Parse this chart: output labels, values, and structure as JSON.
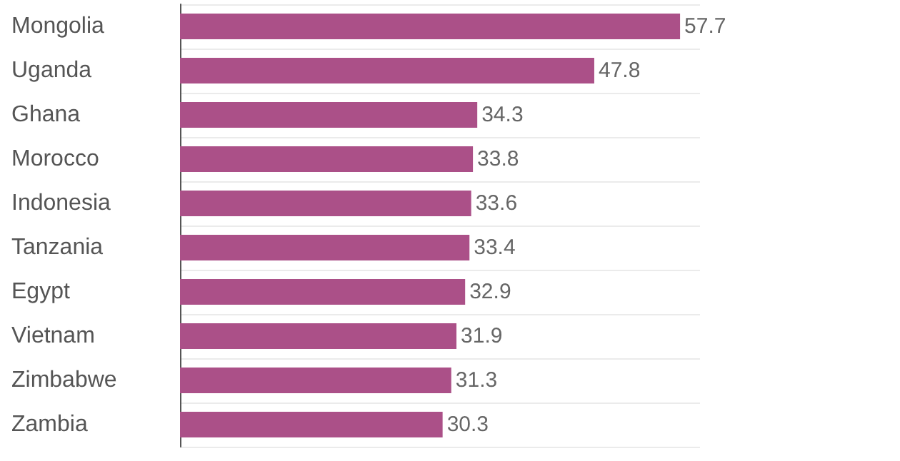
{
  "chart_data": {
    "type": "bar",
    "orientation": "horizontal",
    "categories": [
      "Mongolia",
      "Uganda",
      "Ghana",
      "Morocco",
      "Indonesia",
      "Tanzania",
      "Egypt",
      "Vietnam",
      "Zimbabwe",
      "Zambia"
    ],
    "values": [
      57.7,
      47.8,
      34.3,
      33.8,
      33.6,
      33.4,
      32.9,
      31.9,
      31.3,
      30.3
    ],
    "color": "#ab5088",
    "data_labels": true,
    "grid": "y"
  }
}
